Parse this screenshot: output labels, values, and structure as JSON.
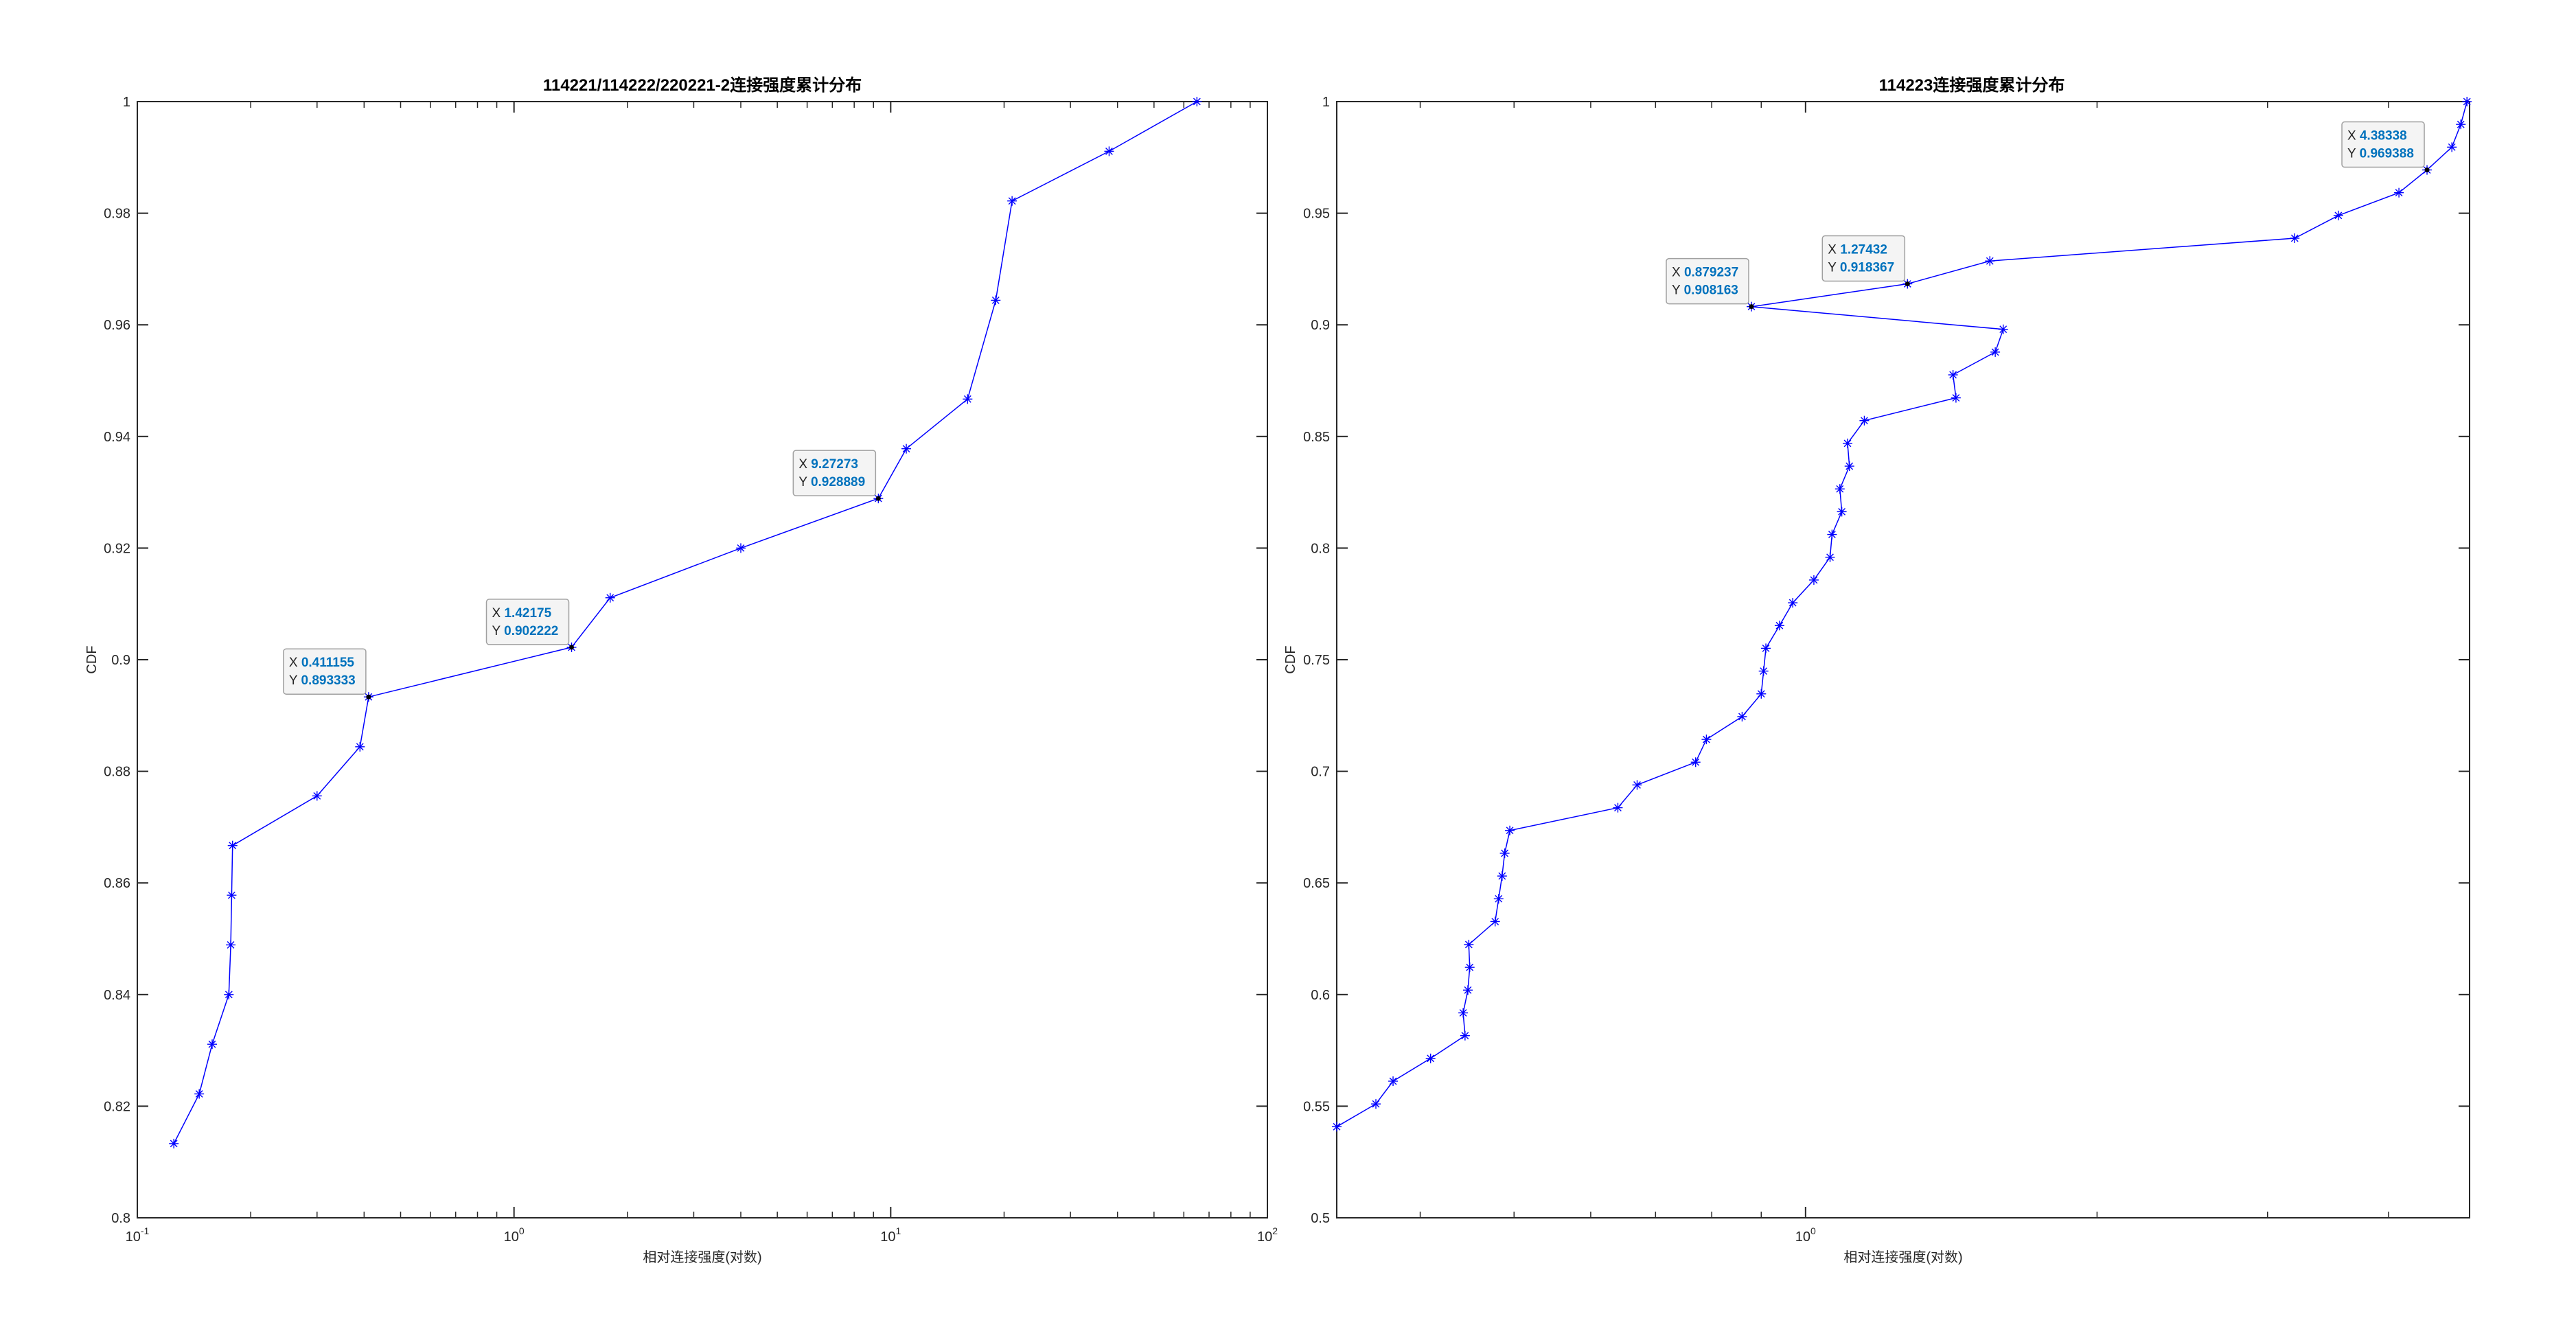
{
  "figure_background": "#ffffff",
  "colors": {
    "axes": "#262626",
    "series": "#0000ff",
    "datatip_value": "#0072bd",
    "datatip_text": "#262626",
    "datatip_border": "#a0a0a0",
    "datatip_marker": "#000000"
  },
  "chart_data": [
    {
      "type": "line",
      "title": "114221/114222/220221-2连接强度累计分布",
      "xlabel": "相对连接强度(对数)",
      "ylabel": "CDF",
      "xscale": "log",
      "xlim": [
        0.1,
        100
      ],
      "ylim": [
        0.8,
        1.0
      ],
      "grid": false,
      "marker": "*",
      "x_ticks": [
        0.1,
        1,
        10,
        100
      ],
      "x_tick_labels": [
        {
          "base": "10",
          "exp": "-1"
        },
        {
          "base": "10",
          "exp": "0"
        },
        {
          "base": "10",
          "exp": "1"
        },
        {
          "base": "10",
          "exp": "2"
        }
      ],
      "y_ticks": [
        0.8,
        0.82,
        0.84,
        0.86,
        0.88,
        0.9,
        0.92,
        0.94,
        0.96,
        0.98,
        1
      ],
      "y_tick_labels": [
        "0.8",
        "0.82",
        "0.84",
        "0.86",
        "0.88",
        "0.9",
        "0.92",
        "0.94",
        "0.96",
        "0.98",
        "1"
      ],
      "series": [
        {
          "points": [
            [
              0.125,
              0.8133
            ],
            [
              0.146,
              0.8222
            ],
            [
              0.158,
              0.8311
            ],
            [
              0.175,
              0.84
            ],
            [
              0.177,
              0.8489
            ],
            [
              0.178,
              0.8578
            ],
            [
              0.179,
              0.8667
            ],
            [
              0.3,
              0.8756
            ],
            [
              0.39,
              0.8844
            ],
            [
              0.411155,
              0.893333
            ],
            [
              1.42175,
              0.902222
            ],
            [
              1.8,
              0.9111
            ],
            [
              4.0,
              0.92
            ],
            [
              9.27273,
              0.928889
            ],
            [
              11.0,
              0.9378
            ],
            [
              16.0,
              0.9467
            ],
            [
              19.0,
              0.9644
            ],
            [
              21.0,
              0.9822
            ],
            [
              38.0,
              0.9911
            ],
            [
              65.0,
              1.0
            ]
          ]
        }
      ],
      "datatips": [
        {
          "x_label": "X",
          "y_label": "Y",
          "x": "0.411155",
          "y": "0.893333",
          "xv": 0.411155,
          "yv": 0.893333
        },
        {
          "x_label": "X",
          "y_label": "Y",
          "x": "1.42175",
          "y": "0.902222",
          "xv": 1.42175,
          "yv": 0.902222
        },
        {
          "x_label": "X",
          "y_label": "Y",
          "x": "9.27273",
          "y": "0.928889",
          "xv": 9.27273,
          "yv": 0.928889
        }
      ]
    },
    {
      "type": "line",
      "title": "114223连接强度累计分布",
      "xlabel": "相对连接强度(对数)",
      "ylabel": "CDF",
      "xscale": "log",
      "xlim": [
        0.328,
        4.85
      ],
      "ylim": [
        0.5,
        1.0
      ],
      "grid": false,
      "marker": "*",
      "x_ticks": [
        1
      ],
      "x_tick_labels": [
        {
          "base": "10",
          "exp": "0"
        }
      ],
      "y_ticks": [
        0.5,
        0.55,
        0.6,
        0.65,
        0.7,
        0.75,
        0.8,
        0.85,
        0.9,
        0.95,
        1
      ],
      "y_tick_labels": [
        "0.5",
        "0.55",
        "0.6",
        "0.65",
        "0.7",
        "0.75",
        "0.8",
        "0.85",
        "0.9",
        "0.95",
        "1"
      ],
      "series": [
        {
          "points": [
            [
              0.328,
              0.5408
            ],
            [
              0.36,
              0.551
            ],
            [
              0.375,
              0.5612
            ],
            [
              0.41,
              0.5714
            ],
            [
              0.445,
              0.5816
            ],
            [
              0.443,
              0.5918
            ],
            [
              0.448,
              0.602
            ],
            [
              0.45,
              0.6122
            ],
            [
              0.449,
              0.6224
            ],
            [
              0.478,
              0.6327
            ],
            [
              0.482,
              0.6429
            ],
            [
              0.486,
              0.6531
            ],
            [
              0.489,
              0.6633
            ],
            [
              0.495,
              0.6735
            ],
            [
              0.64,
              0.6837
            ],
            [
              0.67,
              0.6939
            ],
            [
              0.77,
              0.7041
            ],
            [
              0.79,
              0.7143
            ],
            [
              0.86,
              0.7245
            ],
            [
              0.9,
              0.7347
            ],
            [
              0.905,
              0.7449
            ],
            [
              0.91,
              0.7551
            ],
            [
              0.94,
              0.7653
            ],
            [
              0.97,
              0.7755
            ],
            [
              1.02,
              0.7857
            ],
            [
              1.06,
              0.7959
            ],
            [
              1.065,
              0.8061
            ],
            [
              1.09,
              0.8163
            ],
            [
              1.085,
              0.8265
            ],
            [
              1.11,
              0.8367
            ],
            [
              1.105,
              0.8469
            ],
            [
              1.15,
              0.8571
            ],
            [
              1.43,
              0.8673
            ],
            [
              1.42,
              0.8776
            ],
            [
              1.57,
              0.8878
            ],
            [
              1.6,
              0.898
            ],
            [
              0.879237,
              0.908163
            ],
            [
              1.27432,
              0.918367
            ],
            [
              1.55,
              0.9286
            ],
            [
              3.2,
              0.9388
            ],
            [
              3.55,
              0.949
            ],
            [
              4.1,
              0.9592
            ],
            [
              4.38338,
              0.969388
            ],
            [
              4.65,
              0.9796
            ],
            [
              4.75,
              0.9898
            ],
            [
              4.82,
              1.0
            ]
          ]
        }
      ],
      "datatips": [
        {
          "x_label": "X",
          "y_label": "Y",
          "x": "0.879237",
          "y": "0.908163",
          "xv": 0.879237,
          "yv": 0.908163
        },
        {
          "x_label": "X",
          "y_label": "Y",
          "x": "1.27432",
          "y": "0.918367",
          "xv": 1.27432,
          "yv": 0.918367
        },
        {
          "x_label": "X",
          "y_label": "Y",
          "x": "4.38338",
          "y": "0.969388",
          "xv": 4.38338,
          "yv": 0.969388
        }
      ]
    }
  ]
}
